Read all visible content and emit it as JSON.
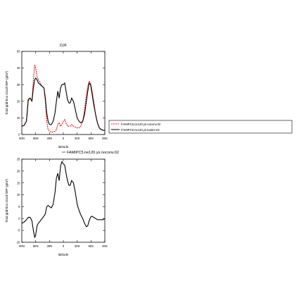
{
  "chart_data": [
    {
      "type": "line",
      "title": "DJF",
      "xlabel": "latitude",
      "ylabel": "Total grid-box cloud IWP (g/m²)",
      "xlim": [
        90,
        -90
      ],
      "ylim": [
        0,
        50
      ],
      "xticks": [
        90,
        60,
        30,
        0,
        -30,
        -60,
        -90
      ],
      "xtick_labels": [
        "90N",
        "60N",
        "30N",
        "0",
        "30S",
        "60S",
        "90S"
      ],
      "yticks": [
        0,
        10,
        20,
        30,
        40,
        50
      ],
      "legend": "right",
      "series": [
        {
          "name": "FAMIPC5.ne120.ys.noconv.02",
          "color": "#e0191b",
          "dashed": true,
          "x": [
            90,
            85,
            80,
            76,
            72,
            68,
            65,
            62,
            60,
            57,
            54,
            50,
            46,
            42,
            39,
            36,
            33,
            30,
            26,
            22,
            18,
            15,
            12,
            9,
            6,
            3,
            0,
            -3,
            -6,
            -9,
            -12,
            -15,
            -18,
            -22,
            -26,
            -30,
            -34,
            -38,
            -42,
            -46,
            -50,
            -53,
            -56,
            -59,
            -62,
            -66,
            -70,
            -74,
            -78,
            -82,
            -86,
            -90
          ],
          "y": [
            5,
            5.5,
            8,
            20,
            22,
            20,
            33,
            42,
            40,
            35,
            33,
            31,
            29,
            28,
            20,
            8,
            3,
            2,
            1.5,
            1.5,
            2,
            3,
            6,
            7,
            5,
            6,
            8,
            9,
            7,
            5,
            5,
            5,
            6,
            5,
            4.5,
            4,
            4,
            5,
            8,
            15,
            24,
            29,
            32,
            31,
            27,
            20,
            12,
            7,
            4,
            3,
            2.5,
            2.5
          ]
        },
        {
          "name": "FAMIPC5.ne120.ys.tau5m.02",
          "color": "#000000",
          "dashed": false,
          "x": [
            90,
            85,
            80,
            76,
            72,
            68,
            65,
            62,
            60,
            57,
            54,
            50,
            46,
            42,
            39,
            36,
            33,
            30,
            26,
            22,
            18,
            15,
            12,
            9,
            6,
            3,
            0,
            -3,
            -6,
            -9,
            -12,
            -15,
            -18,
            -22,
            -26,
            -30,
            -34,
            -38,
            -42,
            -46,
            -50,
            -53,
            -56,
            -59,
            -62,
            -66,
            -70,
            -74,
            -78,
            -82,
            -86,
            -90
          ],
          "y": [
            5,
            5.5,
            8,
            21,
            22,
            20,
            28,
            33,
            34,
            33,
            31,
            30,
            29,
            28,
            22,
            13,
            8,
            6,
            6,
            8,
            13,
            20,
            26,
            22,
            28,
            30,
            30,
            31,
            26,
            21,
            19,
            19,
            22,
            20,
            15,
            10,
            8,
            7,
            8,
            12,
            20,
            26,
            31,
            30,
            25,
            18,
            12,
            7,
            4,
            3,
            2.5,
            2.5
          ]
        }
      ]
    },
    {
      "type": "line",
      "title": "FAMIPC5.ne120.ys.noconv.02",
      "xlabel": "latitude",
      "ylabel": "Total grid-box cloud IWP (g/m²)",
      "xlim": [
        90,
        -90
      ],
      "ylim": [
        -10,
        25
      ],
      "xticks": [
        90,
        60,
        30,
        0,
        -30,
        -60,
        -90
      ],
      "xtick_labels": [
        "90N",
        "60N",
        "30N",
        "0",
        "30S",
        "60S",
        "90S"
      ],
      "yticks": [
        -10,
        -5,
        0,
        5,
        10,
        15,
        20,
        25
      ],
      "series": [
        {
          "color": "#000000",
          "x": [
            90,
            85,
            80,
            76,
            72,
            68,
            65,
            62,
            60,
            57,
            54,
            50,
            46,
            42,
            39,
            36,
            33,
            30,
            26,
            22,
            18,
            15,
            12,
            9,
            6,
            3,
            0,
            -3,
            -6,
            -9,
            -12,
            -15,
            -18,
            -22,
            -26,
            -30,
            -34,
            -38,
            -42,
            -46,
            -50,
            -53,
            -56,
            -59,
            -62,
            -66,
            -70,
            -74,
            -78,
            -82,
            -86,
            -90
          ],
          "y": [
            -2,
            -1.5,
            -0.5,
            0.5,
            0.5,
            -1,
            -5,
            -8,
            -7,
            -3,
            -2,
            -1,
            0,
            1,
            2,
            5,
            5.5,
            5,
            4.5,
            6,
            11,
            17,
            19,
            16,
            22,
            24,
            23,
            22.5,
            19,
            16,
            14,
            14,
            16,
            15,
            11,
            6,
            3.5,
            1.5,
            0,
            -2,
            -3.5,
            -3,
            -1,
            0.5,
            1,
            0.5,
            0,
            -0.5,
            -0.5,
            -0.5,
            -0.5,
            0
          ]
        }
      ]
    }
  ]
}
